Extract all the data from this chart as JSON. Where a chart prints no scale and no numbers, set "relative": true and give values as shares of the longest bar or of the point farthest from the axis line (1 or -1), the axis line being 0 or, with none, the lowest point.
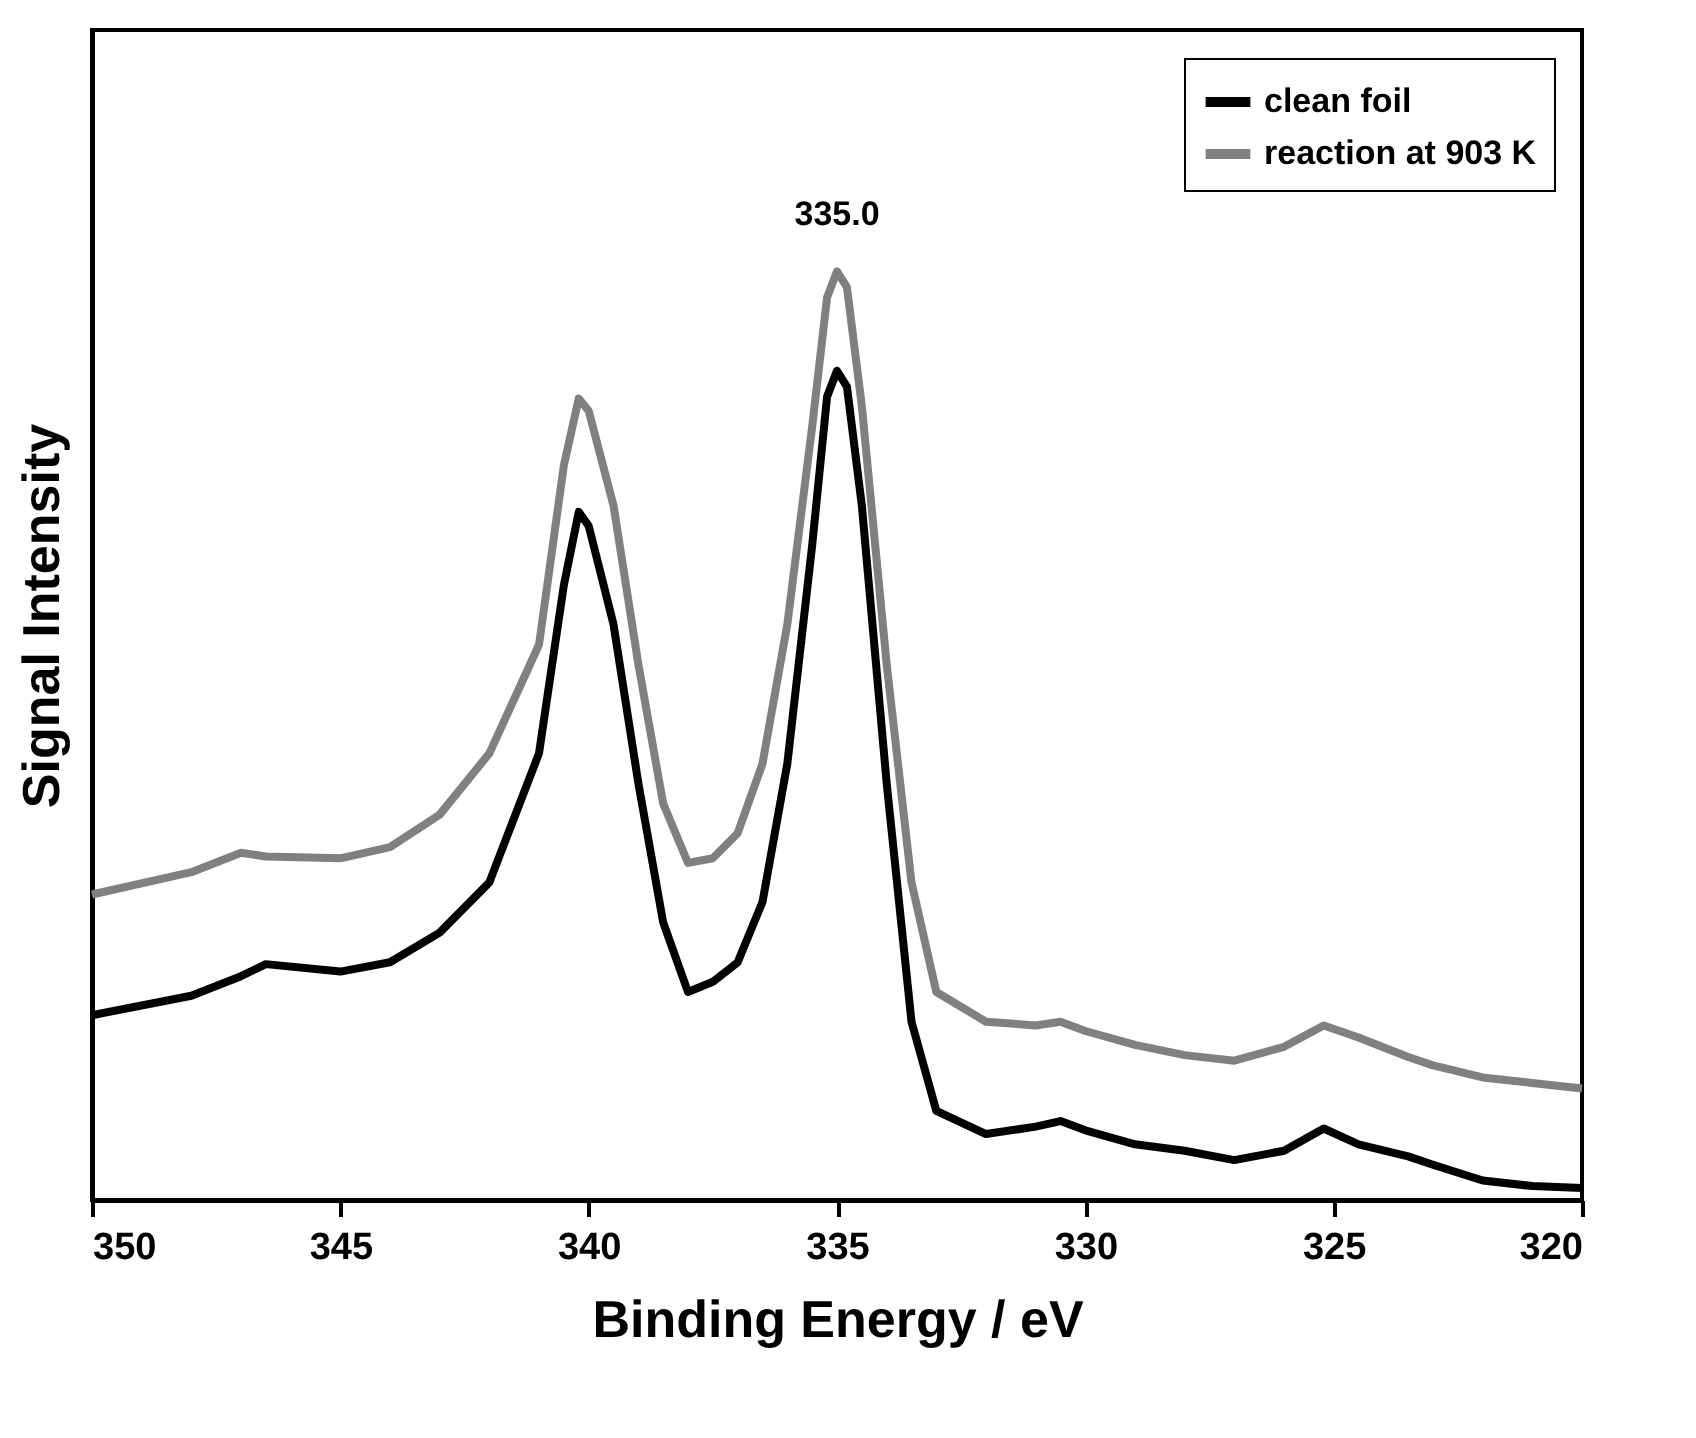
{
  "chart_data": {
    "type": "line",
    "relative": true,
    "xlabel": "Binding Energy / eV",
    "ylabel": "Signal Intensity",
    "xlim": [
      350,
      320
    ],
    "xticks": [
      350,
      345,
      340,
      335,
      330,
      325,
      320
    ],
    "legend": "top right",
    "tick_labels": "x",
    "grid": false,
    "marker": "none",
    "line_style": "solid",
    "x": [
      350,
      348,
      347,
      346.5,
      345,
      344,
      343,
      342,
      341,
      340.5,
      340.2,
      340,
      339.5,
      339,
      338.5,
      338,
      337.5,
      337,
      336.5,
      336,
      335.5,
      335.2,
      335,
      334.8,
      334.5,
      334,
      333.5,
      333,
      332,
      331,
      330.5,
      330,
      329,
      328,
      327,
      326,
      325.2,
      324.5,
      323.5,
      323,
      322,
      321,
      320
    ],
    "series": [
      {
        "name": "clean foil",
        "color": "#000000",
        "values": [
          0.199,
          0.22,
          0.241,
          0.254,
          0.246,
          0.256,
          0.288,
          0.342,
          0.481,
          0.662,
          0.741,
          0.726,
          0.62,
          0.449,
          0.299,
          0.224,
          0.235,
          0.256,
          0.321,
          0.47,
          0.705,
          0.865,
          0.893,
          0.876,
          0.748,
          0.449,
          0.192,
          0.096,
          0.071,
          0.079,
          0.085,
          0.075,
          0.06,
          0.053,
          0.043,
          0.053,
          0.077,
          0.06,
          0.047,
          0.038,
          0.021,
          0.015,
          0.013
        ]
      },
      {
        "name": "reaction at 903 K",
        "color": "#808080",
        "values": [
          0.329,
          0.353,
          0.374,
          0.37,
          0.368,
          0.38,
          0.415,
          0.481,
          0.598,
          0.791,
          0.863,
          0.85,
          0.748,
          0.577,
          0.427,
          0.363,
          0.368,
          0.395,
          0.47,
          0.62,
          0.833,
          0.972,
          1.0,
          0.983,
          0.855,
          0.577,
          0.342,
          0.224,
          0.192,
          0.188,
          0.192,
          0.182,
          0.167,
          0.156,
          0.15,
          0.165,
          0.188,
          0.175,
          0.154,
          0.145,
          0.132,
          0.126,
          0.12
        ]
      }
    ],
    "annotations": [
      {
        "text": "335.0",
        "x": 335,
        "y": 1.0
      }
    ]
  }
}
